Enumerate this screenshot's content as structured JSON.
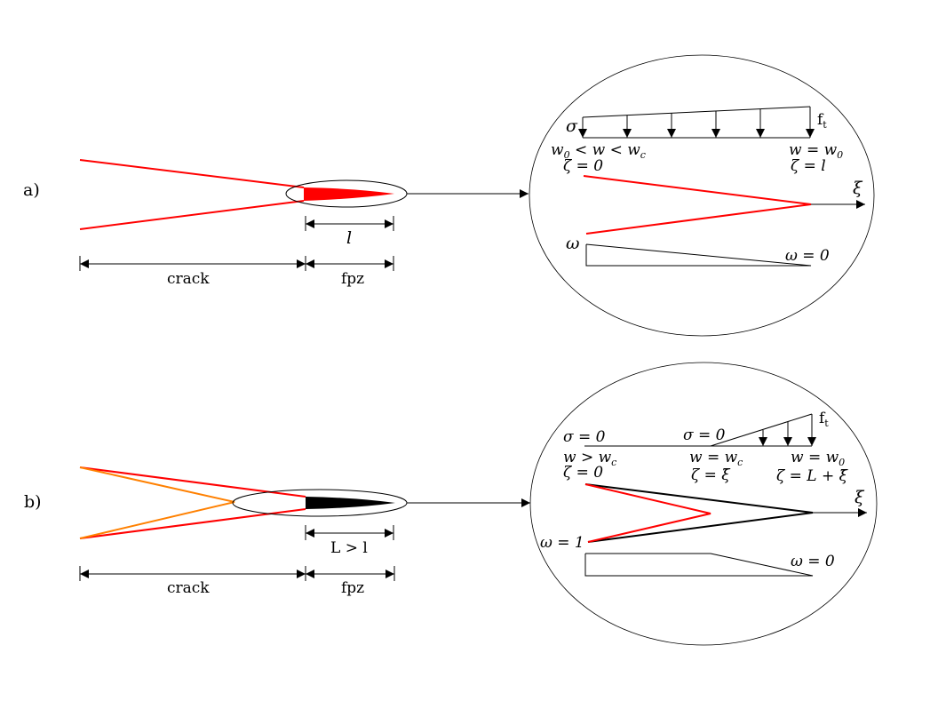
{
  "panel_a": {
    "label": "a)",
    "dim_fpz_length": "l",
    "dim_crack": "crack",
    "dim_fpz": "fpz",
    "zoom": {
      "sigma": "σ",
      "ft": "f",
      "ft_sub": "t",
      "w_left": "w",
      "w_left_sub": "0",
      "w_left_rest": " < w < w",
      "w_left_rest_sub": "c",
      "zeta_left": "ζ = 0",
      "w_right": "w = w",
      "w_right_sub": "0",
      "zeta_right": "ζ = l",
      "xi": "ξ",
      "omega": "ω",
      "omega_zero": "ω = 0"
    }
  },
  "panel_b": {
    "label": "b)",
    "dim_fpz_length": "L > l",
    "dim_crack": "crack",
    "dim_fpz": "fpz",
    "zoom": {
      "sigma_zero_left": "σ = 0",
      "sigma_zero_mid": "σ = 0",
      "ft": "f",
      "ft_sub": "t",
      "w_left": "w > w",
      "w_left_sub": "c",
      "zeta_left": "ζ = 0",
      "w_mid": "w = w",
      "w_mid_sub": "c",
      "zeta_mid": "ζ = ξ̄",
      "w_right": "w = w",
      "w_right_sub": "0",
      "zeta_right": "ζ = L + ξ̄",
      "xi": "ξ",
      "omega_one": "ω = 1",
      "omega_zero": "ω = 0"
    }
  },
  "colors": {
    "crack_red": "#ff0000",
    "crack_orange": "#ff8000",
    "fpz_black": "#000000",
    "line": "#000000"
  }
}
